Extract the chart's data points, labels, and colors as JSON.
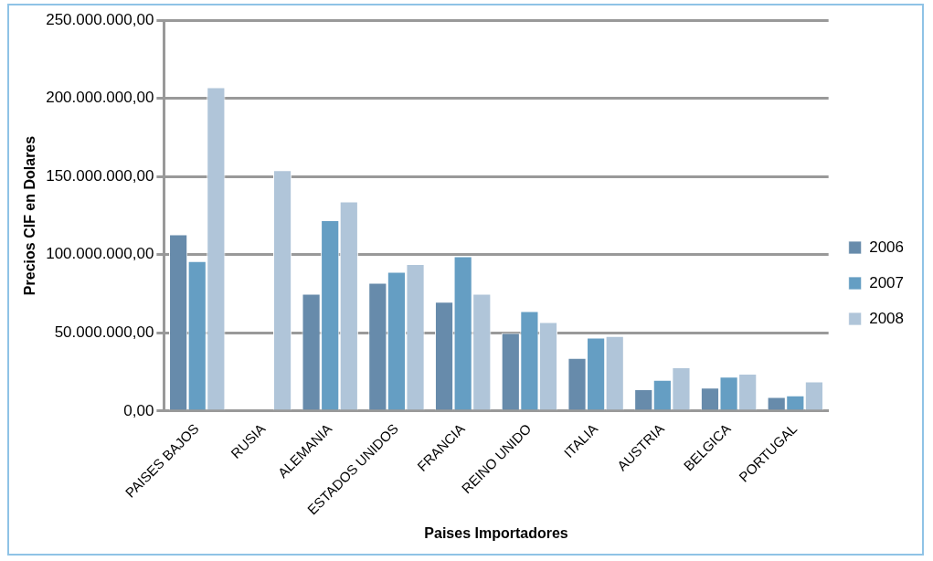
{
  "chart_data": {
    "type": "bar",
    "xlabel": "Paises Importadores",
    "ylabel": "Precios CIF en Dolares",
    "categories": [
      "PAISES BAJOS",
      "RUSIA",
      "ALEMANIA",
      "ESTADOS UNIDOS",
      "FRANCIA",
      "REINO UNIDO",
      "ITALIA",
      "AUSTRIA",
      "BELGICA",
      "PORTUGAL"
    ],
    "series": [
      {
        "name": "2006",
        "color": "#678bab",
        "values": [
          113000000,
          null,
          75000000,
          82000000,
          70000000,
          50000000,
          34000000,
          14000000,
          15000000,
          9000000
        ]
      },
      {
        "name": "2007",
        "color": "#659ec3",
        "values": [
          96000000,
          null,
          122000000,
          89000000,
          99000000,
          64000000,
          47000000,
          20000000,
          22000000,
          10000000
        ]
      },
      {
        "name": "2008",
        "color": "#b0c5d9",
        "values": [
          207000000,
          154000000,
          134000000,
          94000000,
          75000000,
          57000000,
          48000000,
          28000000,
          24000000,
          19000000
        ]
      }
    ],
    "ylim": [
      0,
      250000000
    ],
    "yticks": [
      {
        "value": 0,
        "label": "0,00"
      },
      {
        "value": 50000000,
        "label": "50.000.000,00"
      },
      {
        "value": 100000000,
        "label": "100.000.000,00"
      },
      {
        "value": 150000000,
        "label": "150.000.000,00"
      },
      {
        "value": 200000000,
        "label": "200.000.000,00"
      },
      {
        "value": 250000000,
        "label": "250.000.000,00"
      }
    ],
    "grid": "y",
    "legend": "right"
  }
}
